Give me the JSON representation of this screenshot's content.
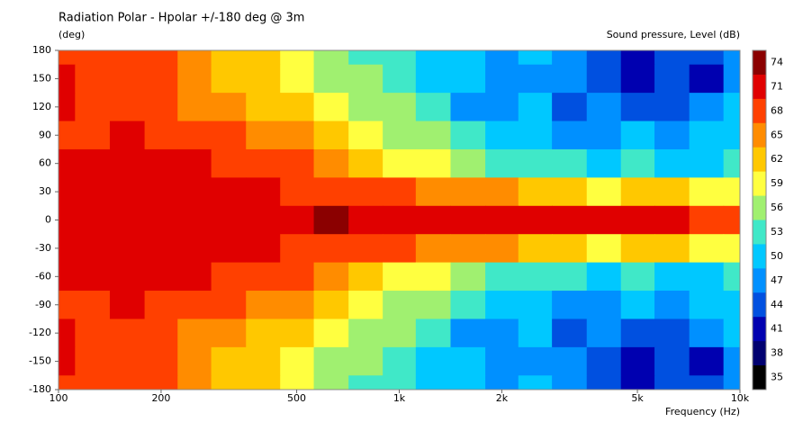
{
  "chart_data": {
    "type": "contour",
    "title": "Radiation Polar - Hpolar +/-180 deg @ 3m",
    "y_label": "(deg)",
    "x_label": "Frequency  (Hz)",
    "colorbar_label": "Sound pressure, Level  (dB)",
    "log_x": true,
    "xlim": [
      100,
      10000
    ],
    "xticks": [
      100,
      200,
      500,
      {
        "value": 1000,
        "label": "1k"
      },
      {
        "value": 2000,
        "label": "2k"
      },
      {
        "value": 5000,
        "label": "5k"
      },
      {
        "value": 10000,
        "label": "10k"
      }
    ],
    "ylim": [
      -180,
      180
    ],
    "yticks": [
      180,
      150,
      120,
      90,
      60,
      30,
      0,
      -30,
      -60,
      -90,
      -120,
      -150,
      -180
    ],
    "levels": [
      74,
      71,
      68,
      65,
      62,
      59,
      56,
      53,
      50,
      47,
      44,
      41,
      38,
      35
    ],
    "colors": [
      "#8b0000",
      "#e00000",
      "#ff4000",
      "#ff8c00",
      "#ffc800",
      "#ffff40",
      "#a0f070",
      "#40e8c8",
      "#00c8ff",
      "#0090ff",
      "#0050e0",
      "#0000b0",
      "#000070",
      "#000000"
    ],
    "x": [
      100,
      125,
      160,
      200,
      250,
      315,
      400,
      500,
      630,
      800,
      1000,
      1250,
      1600,
      2000,
      2500,
      3150,
      4000,
      5000,
      6300,
      8000,
      10000
    ],
    "y": [
      180,
      150,
      120,
      90,
      60,
      30,
      0,
      -30,
      -60,
      -90,
      -120,
      -150,
      -180
    ],
    "z": [
      [
        68,
        68,
        68,
        68,
        65,
        62,
        62,
        59,
        56,
        53,
        53,
        50,
        50,
        47,
        50,
        47,
        44,
        41,
        44,
        44,
        47
      ],
      [
        71,
        68,
        68,
        68,
        65,
        62,
        62,
        59,
        56,
        56,
        53,
        50,
        50,
        47,
        47,
        47,
        44,
        41,
        44,
        41,
        47
      ],
      [
        71,
        68,
        68,
        68,
        65,
        65,
        62,
        62,
        59,
        56,
        56,
        53,
        47,
        47,
        50,
        44,
        47,
        44,
        44,
        47,
        50
      ],
      [
        68,
        68,
        71,
        68,
        68,
        68,
        65,
        65,
        62,
        59,
        56,
        56,
        53,
        50,
        50,
        47,
        47,
        50,
        47,
        50,
        50
      ],
      [
        71,
        71,
        71,
        71,
        71,
        68,
        68,
        68,
        65,
        62,
        59,
        59,
        56,
        53,
        53,
        53,
        50,
        53,
        50,
        50,
        53
      ],
      [
        71,
        71,
        71,
        71,
        71,
        71,
        71,
        68,
        68,
        68,
        68,
        65,
        65,
        65,
        62,
        62,
        59,
        62,
        62,
        59,
        59
      ],
      [
        71,
        71,
        71,
        71,
        71,
        71,
        71,
        71,
        74,
        71,
        71,
        71,
        71,
        71,
        71,
        71,
        71,
        71,
        71,
        68,
        68
      ],
      [
        71,
        71,
        71,
        71,
        71,
        71,
        71,
        68,
        68,
        68,
        68,
        65,
        65,
        65,
        62,
        62,
        59,
        62,
        62,
        59,
        59
      ],
      [
        71,
        71,
        71,
        71,
        71,
        68,
        68,
        68,
        65,
        62,
        59,
        59,
        56,
        53,
        53,
        53,
        50,
        53,
        50,
        50,
        53
      ],
      [
        68,
        68,
        71,
        68,
        68,
        68,
        65,
        65,
        62,
        59,
        56,
        56,
        53,
        50,
        50,
        47,
        47,
        50,
        47,
        50,
        50
      ],
      [
        71,
        68,
        68,
        68,
        65,
        65,
        62,
        62,
        59,
        56,
        56,
        53,
        47,
        47,
        50,
        44,
        47,
        44,
        44,
        47,
        50
      ],
      [
        71,
        68,
        68,
        68,
        65,
        62,
        62,
        59,
        56,
        56,
        53,
        50,
        50,
        47,
        47,
        47,
        44,
        41,
        44,
        41,
        47
      ],
      [
        68,
        68,
        68,
        68,
        65,
        62,
        62,
        59,
        56,
        53,
        53,
        50,
        50,
        47,
        50,
        47,
        44,
        41,
        44,
        44,
        47
      ]
    ]
  }
}
